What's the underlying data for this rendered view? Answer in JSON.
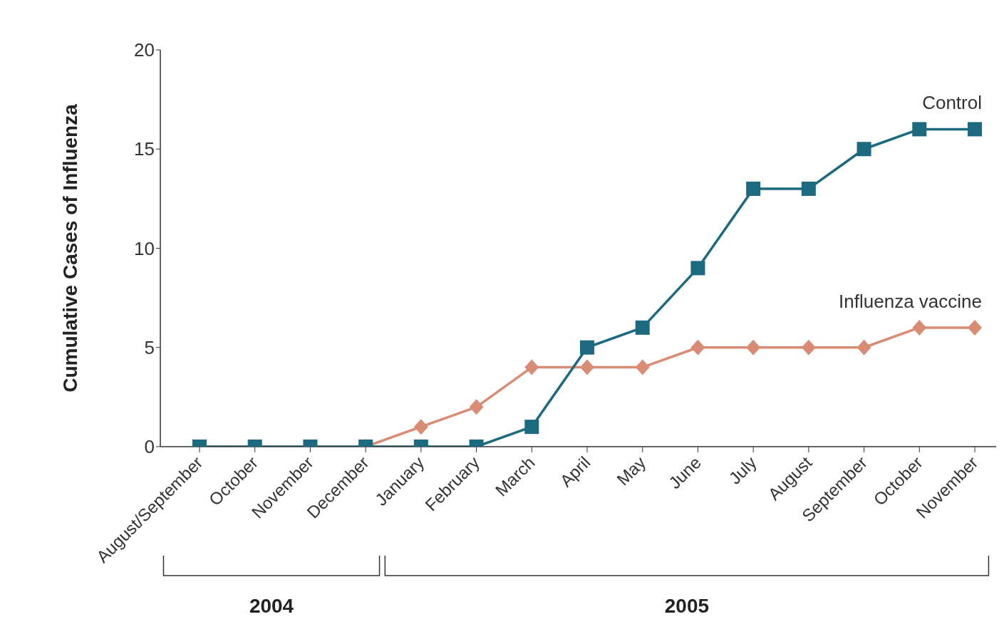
{
  "chart_data": {
    "type": "line",
    "ylabel": "Cumulative Cases of Influenza",
    "categories": [
      "August/September",
      "October",
      "November",
      "December",
      "January",
      "February",
      "March",
      "April",
      "May",
      "June",
      "July",
      "August",
      "September",
      "October",
      "November"
    ],
    "series": [
      {
        "name": "Influenza vaccine",
        "color": "#d98b73",
        "marker": "diamond",
        "values": [
          null,
          null,
          null,
          0,
          1,
          2,
          4,
          4,
          4,
          5,
          5,
          5,
          5,
          6,
          6
        ]
      },
      {
        "name": "Control",
        "color": "#1b6a80",
        "marker": "square",
        "values": [
          0,
          0,
          0,
          0,
          0,
          0,
          1,
          5,
          6,
          9,
          13,
          13,
          15,
          16,
          16
        ]
      }
    ],
    "ylim": [
      0,
      20
    ],
    "yticks": [
      0,
      5,
      10,
      15,
      20
    ],
    "annotations": [
      "2004",
      "2005"
    ]
  }
}
